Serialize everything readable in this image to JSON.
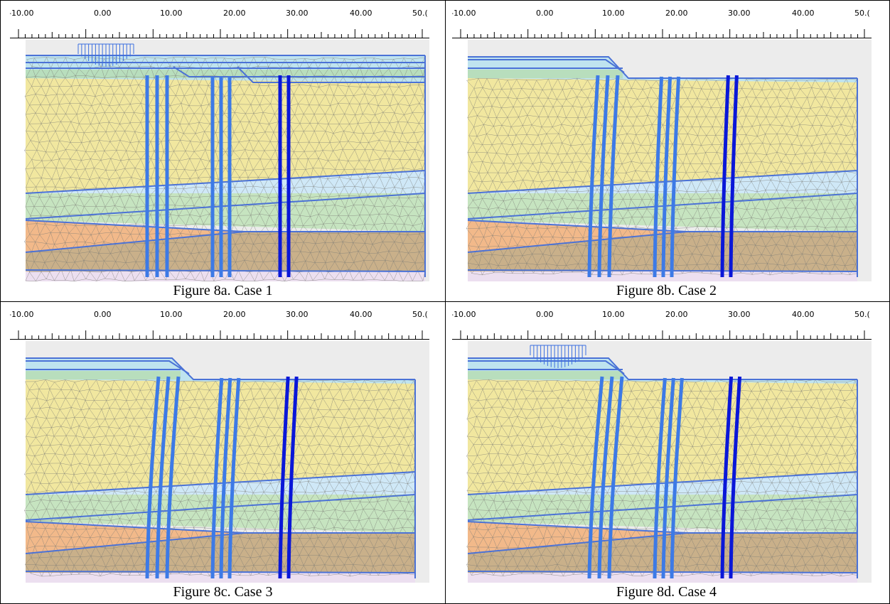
{
  "ruler_ticks": [
    "-10.00",
    "0.00",
    "10.00",
    "20.00",
    "30.00",
    "40.00",
    "50.("
  ],
  "figures": [
    {
      "id": "a",
      "caption": "Figure 8a. Case 1",
      "surcharge": true
    },
    {
      "id": "b",
      "caption": "Figure 8b. Case 2",
      "surcharge": false
    },
    {
      "id": "c",
      "caption": "Figure 8c. Case 3",
      "surcharge": false
    },
    {
      "id": "d",
      "caption": "Figure 8d. Case 4",
      "surcharge": true
    }
  ],
  "colors": {
    "layer_top_fill": "#bfe3ef",
    "layer_green_thin": "#b6dcb0",
    "layer_clay_yellow": "#f1e79f",
    "layer_sand_blue": "#cfe8f7",
    "layer_green": "#c6e4c0",
    "layer_orange": "#f2b98a",
    "layer_brown": "#c9b08a",
    "layer_bottom": "#ecdff0",
    "boundary_line": "#4b72d6",
    "pile_light": "#3d7ae6",
    "pile_dark": "#0a17d8",
    "mesh_line": "#7a7a74",
    "surcharge": "#3b6fe0"
  }
}
